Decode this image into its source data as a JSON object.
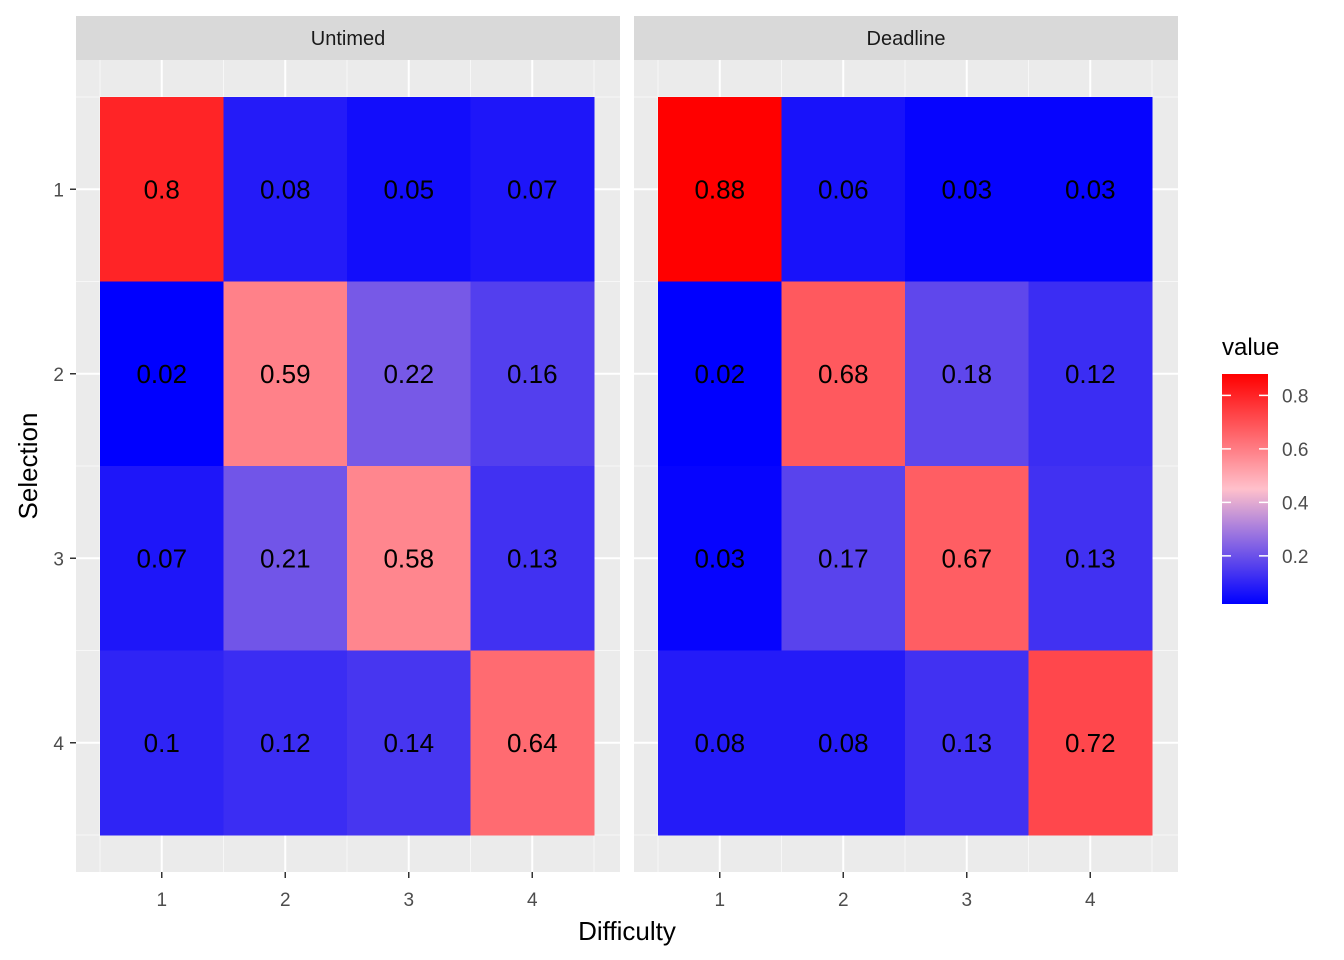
{
  "chart_data": {
    "type": "heatmap",
    "xlabel": "Difficulty",
    "ylabel": "Selection",
    "x": [
      "1",
      "2",
      "3",
      "4"
    ],
    "y": [
      "1",
      "2",
      "3",
      "4"
    ],
    "legend": {
      "title": "value",
      "placement": "right",
      "ticks": [
        "0.2",
        "0.4",
        "0.6",
        "0.8"
      ],
      "tick_values": [
        0.2,
        0.4,
        0.6,
        0.8
      ],
      "range": [
        0.02,
        0.88
      ],
      "colors": {
        "low": "#0000FF",
        "mid": "#FFC0CB",
        "high": "#FF0000",
        "midpoint": 0.45
      }
    },
    "panels": [
      {
        "title": "Untimed",
        "values": [
          [
            0.8,
            0.08,
            0.05,
            0.07
          ],
          [
            0.02,
            0.59,
            0.22,
            0.16
          ],
          [
            0.07,
            0.21,
            0.58,
            0.13
          ],
          [
            0.1,
            0.12,
            0.14,
            0.64
          ]
        ],
        "labels": [
          [
            "0.8",
            "0.08",
            "0.05",
            "0.07"
          ],
          [
            "0.02",
            "0.59",
            "0.22",
            "0.16"
          ],
          [
            "0.07",
            "0.21",
            "0.58",
            "0.13"
          ],
          [
            "0.1",
            "0.12",
            "0.14",
            "0.64"
          ]
        ]
      },
      {
        "title": "Deadline",
        "values": [
          [
            0.88,
            0.06,
            0.03,
            0.03
          ],
          [
            0.02,
            0.68,
            0.18,
            0.12
          ],
          [
            0.03,
            0.17,
            0.67,
            0.13
          ],
          [
            0.08,
            0.08,
            0.13,
            0.72
          ]
        ],
        "labels": [
          [
            "0.88",
            "0.06",
            "0.03",
            "0.03"
          ],
          [
            "0.02",
            "0.68",
            "0.18",
            "0.12"
          ],
          [
            "0.03",
            "0.17",
            "0.67",
            "0.13"
          ],
          [
            "0.08",
            "0.08",
            "0.13",
            "0.72"
          ]
        ]
      }
    ]
  }
}
